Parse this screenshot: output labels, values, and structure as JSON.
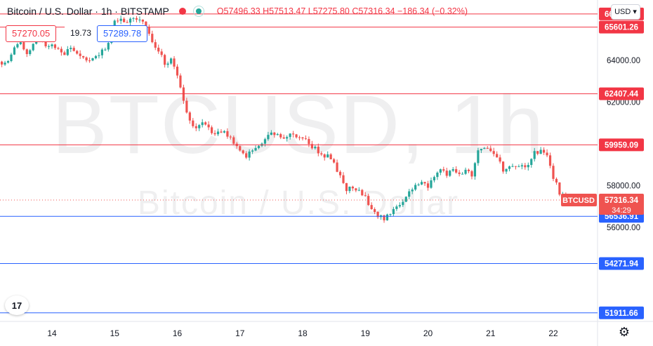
{
  "header": {
    "symbol": "Bitcoin / U.S. Dollar · 1h · BITSTAMP",
    "ohlc": "O57496.33 H57513.47 L57275.80 C57316.34 −186.34 (−0.32%)"
  },
  "prices": {
    "sell": "57270.05",
    "spread": "19.73",
    "buy": "57289.78"
  },
  "currency": "USD",
  "watermark": {
    "symbol": "BTCUSD, 1h",
    "name": "Bitcoin / U.S. Dollar"
  },
  "colors": {
    "up": "#26a69a",
    "down": "#ef5350",
    "resistance": "#f23645",
    "support": "#2962ff",
    "axis_text": "#131722"
  },
  "chart_data": {
    "type": "candlestick",
    "x_ticks": [
      "14",
      "15",
      "16",
      "17",
      "18",
      "19",
      "20",
      "21",
      "22"
    ],
    "y_ticks": [
      "64000.00",
      "62000.00",
      "58000.00",
      "56000.00"
    ],
    "ylim": [
      51500,
      66900
    ],
    "resistance_lines": [
      {
        "value": 66233.8,
        "label": "66233.80"
      },
      {
        "value": 65601.26,
        "label": "65601.26"
      },
      {
        "value": 62407.44,
        "label": "62407.44"
      },
      {
        "value": 59959.09,
        "label": "59959.09"
      }
    ],
    "support_lines": [
      {
        "value": 56536.91,
        "label": "56536.91"
      },
      {
        "value": 54271.94,
        "label": "54271.94"
      },
      {
        "value": 51911.66,
        "label": "51911.66"
      }
    ],
    "last_price": {
      "symbol": "BTCUSD",
      "value": 57316.34,
      "label": "57316.34",
      "countdown": "34:29"
    },
    "close_path": [
      [
        13.0,
        63800
      ],
      [
        13.1,
        63950
      ],
      [
        13.2,
        63700
      ],
      [
        13.3,
        64100
      ],
      [
        13.4,
        64600
      ],
      [
        13.5,
        64900
      ],
      [
        13.6,
        64300
      ],
      [
        13.7,
        64800
      ],
      [
        13.8,
        65100
      ],
      [
        13.9,
        64700
      ],
      [
        14.0,
        64800
      ],
      [
        14.1,
        64600
      ],
      [
        14.2,
        64300
      ],
      [
        14.3,
        64600
      ],
      [
        14.4,
        64400
      ],
      [
        14.5,
        64100
      ],
      [
        14.6,
        63900
      ],
      [
        14.7,
        64200
      ],
      [
        14.8,
        64400
      ],
      [
        14.9,
        64900
      ],
      [
        15.0,
        66000
      ],
      [
        15.1,
        65900
      ],
      [
        15.2,
        65800
      ],
      [
        15.3,
        66100
      ],
      [
        15.4,
        65900
      ],
      [
        15.5,
        65600
      ],
      [
        15.6,
        64900
      ],
      [
        15.7,
        64400
      ],
      [
        15.8,
        63900
      ],
      [
        15.9,
        64000
      ],
      [
        16.0,
        63200
      ],
      [
        16.1,
        62000
      ],
      [
        16.2,
        61100
      ],
      [
        16.3,
        60700
      ],
      [
        16.4,
        61000
      ],
      [
        16.5,
        60700
      ],
      [
        16.6,
        60400
      ],
      [
        16.7,
        60600
      ],
      [
        16.8,
        60400
      ],
      [
        16.9,
        60000
      ],
      [
        17.0,
        59600
      ],
      [
        17.1,
        59400
      ],
      [
        17.2,
        59700
      ],
      [
        17.3,
        59900
      ],
      [
        17.4,
        60300
      ],
      [
        17.5,
        60500
      ],
      [
        17.6,
        60400
      ],
      [
        17.7,
        60300
      ],
      [
        17.8,
        60400
      ],
      [
        17.9,
        60400
      ],
      [
        18.0,
        60300
      ],
      [
        18.1,
        60000
      ],
      [
        18.2,
        59800
      ],
      [
        18.3,
        59500
      ],
      [
        18.4,
        59400
      ],
      [
        18.5,
        59000
      ],
      [
        18.6,
        58400
      ],
      [
        18.7,
        57800
      ],
      [
        18.8,
        57900
      ],
      [
        18.9,
        57700
      ],
      [
        19.0,
        57400
      ],
      [
        19.1,
        57000
      ],
      [
        19.2,
        56600
      ],
      [
        19.3,
        56400
      ],
      [
        19.4,
        56600
      ],
      [
        19.5,
        57000
      ],
      [
        19.6,
        57300
      ],
      [
        19.7,
        57800
      ],
      [
        19.8,
        58000
      ],
      [
        19.9,
        58100
      ],
      [
        20.0,
        58000
      ],
      [
        20.1,
        58400
      ],
      [
        20.2,
        58800
      ],
      [
        20.3,
        58600
      ],
      [
        20.4,
        58700
      ],
      [
        20.5,
        58600
      ],
      [
        20.6,
        58700
      ],
      [
        20.7,
        58500
      ],
      [
        20.8,
        59600
      ],
      [
        20.9,
        59800
      ],
      [
        21.0,
        59700
      ],
      [
        21.1,
        59400
      ],
      [
        21.2,
        58800
      ],
      [
        21.3,
        58900
      ],
      [
        21.4,
        58800
      ],
      [
        21.5,
        58900
      ],
      [
        21.6,
        59100
      ],
      [
        21.7,
        59600
      ],
      [
        21.8,
        59700
      ],
      [
        21.9,
        59400
      ],
      [
        22.0,
        58400
      ],
      [
        22.1,
        57700
      ],
      [
        22.2,
        57300
      ],
      [
        22.25,
        57316
      ]
    ]
  }
}
